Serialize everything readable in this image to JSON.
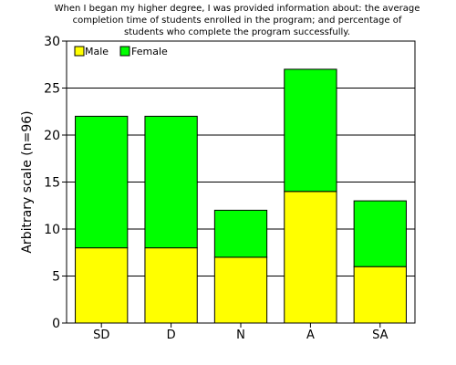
{
  "chart_data": {
    "type": "bar",
    "stacked": true,
    "title_lines": [
      "When I began my higher degree, I was provided information about: the average",
      "completion time of students enrolled in the program; and percentage of",
      "students who complete the program successfully."
    ],
    "xlabel": "",
    "ylabel": "Arbitrary scale (n=96)",
    "ylim": [
      0,
      30
    ],
    "yticks": [
      0,
      5,
      10,
      15,
      20,
      25,
      30
    ],
    "grid": true,
    "legend_position": "top-left",
    "categories": [
      "SD",
      "D",
      "N",
      "A",
      "SA"
    ],
    "series": [
      {
        "name": "Male",
        "color": "#ffff00",
        "values": [
          8,
          8,
          7,
          14,
          6
        ]
      },
      {
        "name": "Female",
        "color": "#00ff00",
        "values": [
          14,
          14,
          5,
          13,
          7
        ]
      }
    ]
  }
}
